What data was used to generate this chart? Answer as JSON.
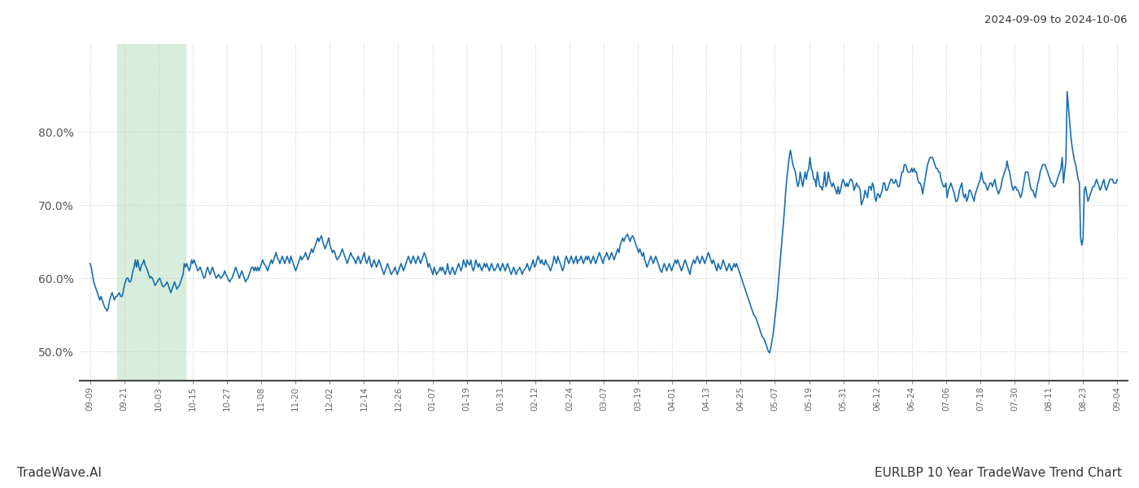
{
  "title_top_right": "2024-09-09 to 2024-10-06",
  "title_bottom_left": "TradeWave.AI",
  "title_bottom_right": "EURLBP 10 Year TradeWave Trend Chart",
  "ylim": [
    46,
    92
  ],
  "yticks": [
    50.0,
    60.0,
    70.0,
    80.0
  ],
  "yticklabels": [
    "50.0%",
    "60.0%",
    "70.0%",
    "80.0%"
  ],
  "line_color": "#1a6fad",
  "line_width": 1.2,
  "bg_color": "#ffffff",
  "grid_color": "#cccccc",
  "highlight_color": "#d8eedc",
  "highlight_xstart": 0.8,
  "highlight_xend": 2.8,
  "x_labels": [
    "09-09",
    "09-21",
    "10-03",
    "10-15",
    "10-27",
    "11-08",
    "11-20",
    "12-02",
    "12-14",
    "12-26",
    "01-07",
    "01-19",
    "01-31",
    "02-12",
    "02-24",
    "03-07",
    "03-19",
    "04-01",
    "04-13",
    "04-25",
    "05-07",
    "05-19",
    "05-31",
    "06-12",
    "06-24",
    "07-06",
    "07-18",
    "07-30",
    "08-11",
    "08-23",
    "09-04"
  ],
  "values": [
    62.0,
    61.5,
    60.5,
    59.5,
    59.0,
    58.5,
    58.0,
    57.5,
    57.0,
    57.5,
    57.0,
    56.5,
    56.0,
    55.8,
    55.5,
    56.0,
    57.0,
    57.5,
    58.0,
    57.5,
    57.0,
    57.5,
    57.5,
    57.8,
    58.0,
    57.5,
    57.5,
    58.0,
    59.0,
    59.5,
    60.0,
    60.0,
    59.5,
    59.5,
    60.0,
    61.0,
    61.5,
    62.5,
    61.5,
    62.5,
    61.5,
    61.0,
    61.8,
    62.0,
    62.5,
    61.8,
    61.5,
    61.0,
    60.5,
    60.0,
    60.2,
    60.0,
    59.5,
    59.0,
    59.2,
    59.5,
    59.8,
    60.0,
    59.5,
    59.0,
    58.8,
    59.0,
    59.2,
    59.5,
    59.0,
    58.5,
    58.0,
    58.5,
    59.0,
    59.5,
    59.0,
    58.5,
    58.8,
    59.0,
    59.5,
    60.0,
    60.5,
    62.0,
    61.5,
    62.0,
    61.5,
    61.0,
    61.5,
    62.5,
    62.0,
    62.5,
    62.0,
    61.5,
    61.0,
    61.2,
    61.5,
    61.0,
    60.5,
    60.0,
    60.2,
    61.0,
    61.5,
    61.0,
    60.5,
    61.0,
    61.5,
    61.0,
    60.5,
    60.0,
    60.2,
    60.5,
    60.2,
    60.0,
    60.2,
    60.5,
    61.0,
    60.5,
    60.2,
    59.8,
    59.5,
    59.8,
    60.0,
    60.5,
    61.0,
    61.5,
    61.0,
    60.5,
    60.0,
    60.5,
    61.0,
    60.5,
    60.0,
    59.5,
    59.8,
    60.0,
    60.5,
    61.0,
    61.5,
    61.5,
    61.0,
    61.5,
    61.0,
    61.5,
    61.0,
    61.5,
    62.0,
    62.5,
    62.0,
    61.8,
    61.5,
    61.0,
    61.5,
    62.0,
    62.5,
    62.0,
    62.5,
    63.0,
    63.5,
    62.8,
    62.5,
    62.0,
    62.5,
    63.0,
    62.5,
    62.0,
    62.5,
    63.0,
    62.5,
    62.0,
    63.0,
    62.5,
    62.0,
    61.5,
    61.0,
    61.5,
    62.0,
    62.5,
    63.0,
    62.5,
    62.8,
    63.0,
    63.5,
    63.0,
    62.5,
    63.0,
    63.5,
    64.0,
    63.5,
    64.0,
    64.5,
    65.0,
    65.5,
    65.0,
    65.5,
    65.8,
    65.0,
    64.5,
    64.0,
    64.5,
    65.0,
    65.5,
    64.5,
    64.0,
    63.5,
    63.8,
    63.5,
    62.8,
    62.5,
    62.8,
    63.0,
    63.5,
    64.0,
    63.5,
    63.0,
    62.5,
    62.0,
    62.5,
    63.0,
    63.5,
    63.0,
    62.8,
    62.5,
    62.0,
    62.5,
    63.0,
    62.5,
    62.0,
    62.5,
    63.0,
    63.5,
    62.5,
    62.0,
    62.5,
    63.0,
    62.0,
    61.5,
    62.0,
    62.5,
    62.0,
    61.5,
    62.0,
    62.5,
    62.0,
    61.5,
    61.0,
    60.5,
    61.0,
    61.5,
    62.0,
    61.5,
    61.0,
    60.5,
    60.8,
    61.0,
    61.5,
    61.0,
    60.5,
    61.0,
    61.5,
    62.0,
    61.5,
    61.0,
    61.5,
    62.0,
    62.5,
    63.0,
    62.5,
    62.0,
    62.5,
    63.0,
    62.5,
    62.0,
    62.5,
    63.0,
    62.5,
    62.0,
    62.5,
    63.0,
    63.5,
    63.0,
    62.5,
    61.5,
    62.0,
    61.5,
    61.0,
    60.5,
    61.5,
    61.0,
    60.5,
    60.8,
    61.0,
    61.5,
    61.0,
    61.5,
    61.0,
    60.5,
    61.0,
    62.0,
    61.0,
    60.5,
    61.0,
    61.5,
    61.0,
    60.5,
    61.0,
    61.5,
    62.0,
    61.5,
    61.0,
    61.5,
    62.5,
    62.0,
    61.5,
    62.5,
    62.0,
    61.8,
    62.5,
    61.5,
    61.0,
    61.5,
    62.5,
    62.0,
    61.5,
    62.0,
    61.5,
    61.0,
    61.5,
    62.0,
    61.5,
    62.0,
    61.5,
    61.0,
    61.5,
    62.0,
    61.5,
    61.0,
    61.2,
    61.5,
    62.0,
    61.5,
    61.0,
    61.5,
    62.0,
    61.5,
    61.0,
    61.5,
    62.0,
    61.5,
    61.0,
    60.5,
    61.0,
    61.5,
    61.0,
    60.5,
    61.0,
    61.2,
    61.5,
    61.0,
    60.5,
    61.0,
    61.2,
    61.5,
    62.0,
    61.5,
    61.0,
    61.5,
    62.0,
    62.5,
    61.5,
    61.8,
    62.5,
    63.0,
    62.5,
    62.0,
    62.5,
    62.0,
    61.8,
    62.5,
    62.0,
    61.8,
    61.5,
    61.0,
    61.5,
    62.0,
    63.0,
    62.5,
    62.0,
    63.0,
    62.5,
    62.0,
    61.5,
    61.0,
    61.5,
    62.5,
    63.0,
    62.5,
    62.0,
    62.5,
    63.0,
    62.5,
    62.0,
    62.5,
    63.0,
    62.0,
    62.5,
    62.5,
    63.0,
    62.5,
    62.0,
    62.5,
    63.0,
    62.5,
    63.0,
    62.5,
    62.0,
    62.5,
    63.0,
    62.5,
    62.0,
    62.5,
    63.0,
    63.5,
    63.0,
    62.5,
    62.0,
    62.8,
    63.0,
    63.5,
    63.0,
    62.5,
    63.0,
    63.5,
    63.0,
    62.5,
    63.0,
    63.5,
    64.0,
    63.5,
    64.5,
    65.0,
    65.5,
    65.0,
    65.5,
    65.8,
    66.0,
    65.5,
    65.0,
    65.5,
    65.8,
    65.5,
    65.0,
    64.5,
    64.0,
    63.5,
    64.0,
    63.5,
    63.0,
    63.5,
    62.5,
    62.0,
    61.5,
    62.0,
    62.5,
    63.0,
    62.5,
    62.0,
    62.5,
    63.0,
    62.5,
    62.0,
    61.5,
    61.0,
    60.8,
    61.5,
    62.0,
    61.5,
    61.0,
    61.5,
    62.0,
    61.5,
    61.0,
    61.5,
    62.0,
    62.5,
    62.0,
    62.5,
    62.0,
    61.5,
    61.0,
    61.5,
    62.0,
    62.5,
    62.0,
    61.5,
    61.0,
    60.5,
    61.5,
    62.0,
    62.5,
    62.0,
    62.5,
    63.0,
    62.5,
    62.0,
    62.5,
    63.0,
    62.5,
    62.0,
    62.5,
    63.0,
    63.5,
    63.0,
    62.5,
    62.0,
    62.5,
    62.0,
    61.5,
    61.0,
    62.0,
    61.5,
    61.2,
    61.8,
    62.5,
    62.0,
    61.5,
    61.0,
    61.5,
    62.0,
    61.5,
    61.0,
    61.5,
    62.0,
    61.5,
    62.0,
    61.5,
    61.0,
    60.5,
    60.0,
    59.5,
    59.0,
    58.5,
    58.0,
    57.5,
    57.0,
    56.5,
    56.0,
    55.5,
    55.0,
    54.8,
    54.5,
    54.0,
    53.5,
    53.0,
    52.5,
    52.0,
    51.8,
    51.5,
    51.0,
    50.5,
    50.0,
    49.8,
    50.5,
    51.5,
    52.5,
    54.0,
    55.5,
    57.0,
    59.0,
    61.0,
    63.0,
    65.0,
    67.0,
    69.0,
    71.5,
    73.5,
    75.0,
    76.5,
    77.5,
    76.5,
    75.5,
    75.0,
    74.5,
    73.5,
    72.5,
    73.0,
    74.5,
    73.5,
    72.5,
    73.5,
    74.5,
    73.5,
    74.5,
    75.0,
    76.5,
    75.0,
    74.5,
    73.5,
    73.5,
    72.5,
    74.5,
    73.5,
    72.5,
    72.5,
    72.0,
    73.0,
    74.5,
    72.5,
    73.0,
    74.5,
    73.5,
    73.0,
    72.5,
    73.0,
    72.5,
    72.0,
    71.5,
    72.5,
    71.5,
    72.0,
    73.0,
    73.5,
    73.0,
    72.5,
    73.0,
    72.5,
    73.0,
    73.5,
    73.5,
    73.0,
    72.0,
    72.5,
    73.0,
    72.5,
    72.5,
    72.0,
    70.0,
    70.5,
    71.0,
    72.0,
    71.5,
    71.0,
    72.5,
    72.5,
    72.0,
    73.0,
    72.5,
    71.0,
    70.5,
    71.5,
    71.5,
    71.0,
    71.5,
    72.0,
    73.0,
    73.0,
    72.0,
    72.0,
    72.5,
    73.0,
    73.5,
    73.5,
    73.0,
    73.0,
    73.5,
    73.0,
    72.5,
    72.5,
    73.5,
    74.5,
    74.5,
    75.5,
    75.5,
    75.0,
    74.5,
    74.5,
    74.5,
    75.0,
    74.5,
    75.0,
    74.5,
    74.5,
    73.5,
    73.0,
    73.0,
    72.5,
    71.5,
    72.5,
    73.5,
    74.5,
    75.5,
    76.0,
    76.5,
    76.5,
    76.5,
    76.0,
    75.5,
    75.0,
    75.0,
    74.5,
    74.5,
    73.5,
    73.0,
    72.5,
    72.5,
    73.0,
    71.0,
    72.0,
    72.5,
    73.0,
    72.5,
    72.0,
    71.5,
    70.5,
    70.5,
    71.0,
    72.0,
    72.5,
    73.0,
    71.5,
    71.0,
    71.5,
    70.5,
    71.0,
    72.0,
    72.0,
    71.5,
    71.0,
    70.5,
    71.5,
    72.0,
    72.5,
    73.0,
    73.5,
    74.5,
    73.5,
    73.0,
    73.0,
    72.5,
    72.0,
    72.5,
    73.0,
    73.0,
    72.5,
    73.0,
    73.5,
    72.5,
    72.0,
    71.5,
    72.0,
    72.5,
    73.5,
    74.0,
    74.5,
    75.0,
    76.0,
    75.0,
    74.5,
    73.5,
    72.5,
    72.0,
    72.5,
    72.5,
    72.0,
    72.0,
    71.5,
    71.0,
    71.5,
    72.5,
    73.5,
    74.5,
    74.5,
    74.5,
    73.5,
    72.5,
    72.0,
    72.0,
    71.5,
    71.0,
    72.0,
    73.0,
    73.5,
    74.5,
    75.0,
    75.5,
    75.5,
    75.5,
    75.0,
    74.5,
    74.0,
    73.5,
    73.0,
    73.0,
    72.5,
    72.5,
    73.0,
    73.5,
    74.0,
    74.5,
    75.0,
    76.5,
    73.0,
    74.5,
    76.0,
    85.5,
    83.5,
    81.5,
    79.5,
    78.0,
    77.0,
    76.0,
    75.5,
    74.5,
    73.5,
    73.0,
    65.5,
    64.5,
    65.5,
    72.0,
    72.5,
    71.5,
    70.5,
    71.0,
    71.5,
    72.0,
    72.5,
    72.5,
    73.0,
    73.5,
    73.0,
    72.5,
    72.0,
    72.5,
    73.0,
    73.5,
    72.5,
    72.0,
    72.5,
    73.0,
    73.5,
    73.5,
    73.5,
    73.0,
    73.0,
    73.0,
    73.5
  ]
}
